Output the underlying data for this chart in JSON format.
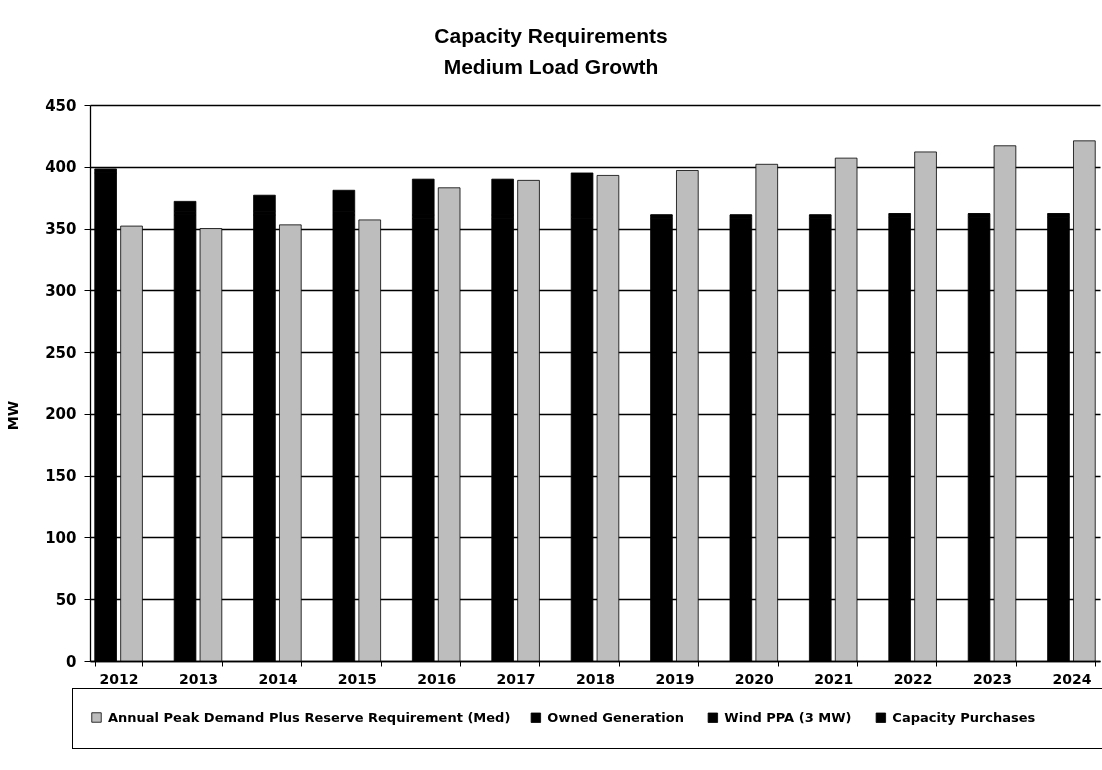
{
  "chart_data": [
    {
      "type": "bar",
      "title": "Capacity Requirements",
      "subtitle": "Medium Load Growth",
      "ylabel": "MW",
      "categories": [
        "2012",
        "2013",
        "2014",
        "2015",
        "2016",
        "2017",
        "2018",
        "2019",
        "2020",
        "2021",
        "2022",
        "2023",
        "2024"
      ],
      "stacked": true,
      "series": [
        {
          "name": "Owned Generation",
          "color": "#000000",
          "values": [
            395,
            361,
            361,
            361,
            358,
            358,
            358,
            358,
            358,
            358,
            359,
            359,
            359
          ]
        },
        {
          "name": "Wind PPA (3 MW)",
          "color": "#000000",
          "values": [
            3,
            3,
            3,
            3,
            3,
            3,
            3,
            3,
            3,
            3,
            3,
            3,
            3
          ]
        },
        {
          "name": "Capacity Purchases",
          "color": "#000000",
          "values": [
            0,
            8,
            13,
            17,
            29,
            29,
            34,
            0,
            0,
            0,
            0,
            0,
            0
          ]
        }
      ],
      "ylim": [
        0,
        450
      ],
      "yticks": [
        0,
        50,
        100,
        150,
        200,
        250,
        300,
        350,
        400,
        450
      ],
      "grid": "y",
      "legend": "bottom"
    },
    {
      "type": "bar",
      "categories": [
        "2012",
        "2013",
        "2014",
        "2015",
        "2016",
        "2017",
        "2018",
        "2019",
        "2020",
        "2021",
        "2022",
        "2023",
        "2024"
      ],
      "series": [
        {
          "name": "Annual Peak Demand Plus Reserve Requirement (Med)",
          "color": "#bdbdbd",
          "values": [
            352,
            350,
            353,
            357,
            383,
            389,
            393,
            397,
            402,
            407,
            412,
            417,
            421
          ]
        }
      ],
      "ylim": [
        0,
        450
      ],
      "tick_labels": false,
      "legend": "bottom"
    }
  ]
}
